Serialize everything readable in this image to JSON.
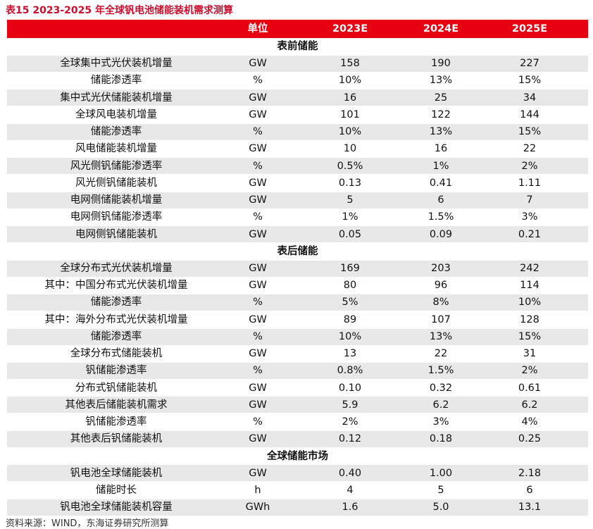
{
  "title": "表15  2023-2025 年全球钒电池储能装机需求测算",
  "table": {
    "header": [
      "单位",
      "2023E",
      "2024E",
      "2025E"
    ],
    "sections": [
      {
        "title": "表前储能",
        "rows": [
          [
            "全球集中式光伏装机增量",
            "GW",
            "158",
            "190",
            "227"
          ],
          [
            "储能渗透率",
            "%",
            "10%",
            "13%",
            "15%"
          ],
          [
            "集中式光伏储能装机增量",
            "GW",
            "16",
            "25",
            "34"
          ],
          [
            "全球风电装机增量",
            "GW",
            "101",
            "122",
            "144"
          ],
          [
            "储能渗透率",
            "%",
            "10%",
            "13%",
            "15%"
          ],
          [
            "风电储能装机增量",
            "GW",
            "10",
            "16",
            "22"
          ],
          [
            "风光侧钒储能渗透率",
            "%",
            "0.5%",
            "1%",
            "2%"
          ],
          [
            "风光侧钒储能装机",
            "GW",
            "0.13",
            "0.41",
            "1.11"
          ],
          [
            "电网侧储能装机增量",
            "GW",
            "5",
            "6",
            "7"
          ],
          [
            "电网侧钒储能渗透率",
            "%",
            "1%",
            "1.5%",
            "3%"
          ],
          [
            "电网侧钒储能装机",
            "GW",
            "0.05",
            "0.09",
            "0.21"
          ]
        ]
      },
      {
        "title": "表后储能",
        "rows": [
          [
            "全球分布式光伏装机增量",
            "GW",
            "169",
            "203",
            "242"
          ],
          [
            "其中：中国分布式光伏装机增量",
            "GW",
            "80",
            "96",
            "114"
          ],
          [
            "储能渗透率",
            "%",
            "5%",
            "8%",
            "10%"
          ],
          [
            "其中：海外分布式光伏装机增量",
            "GW",
            "89",
            "107",
            "128"
          ],
          [
            "储能渗透率",
            "%",
            "10%",
            "13%",
            "15%"
          ],
          [
            "全球分布式储能装机",
            "GW",
            "13",
            "22",
            "31"
          ],
          [
            "钒储能渗透率",
            "%",
            "0.8%",
            "1.5%",
            "2%"
          ],
          [
            "分布式钒储能装机",
            "GW",
            "0.10",
            "0.32",
            "0.61"
          ],
          [
            "其他表后储能装机需求",
            "GW",
            "5.9",
            "6.2",
            "6.2"
          ],
          [
            "钒储能渗透率",
            "%",
            "2%",
            "3%",
            "4%"
          ],
          [
            "其他表后钒储能装机",
            "GW",
            "0.12",
            "0.18",
            "0.25"
          ]
        ]
      },
      {
        "title": "全球储能市场",
        "rows": [
          [
            "钒电池全球储能装机",
            "GW",
            "0.40",
            "1.00",
            "2.18"
          ],
          [
            "储能时长",
            "h",
            "4",
            "5",
            "6"
          ],
          [
            "钒电池全球储能装机容量",
            "GWh",
            "1.6",
            "5.0",
            "13.1"
          ]
        ]
      }
    ]
  },
  "source": "资料来源：WIND，东海证券研究所测算"
}
